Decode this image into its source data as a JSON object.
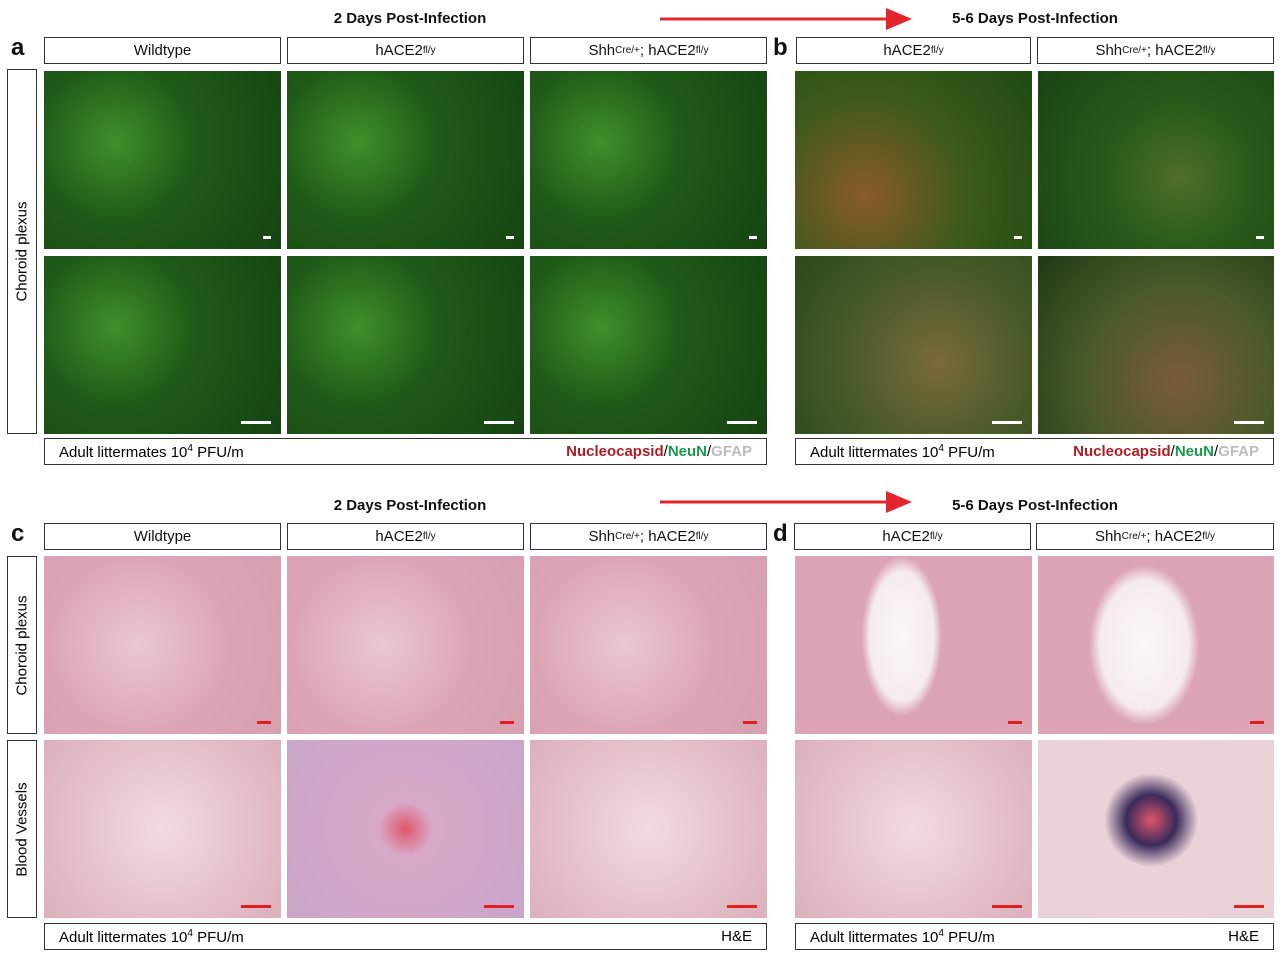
{
  "top": {
    "left_header": "2 Days Post-Infection",
    "right_header": "5-6 Days Post-Infection"
  },
  "bottom": {
    "left_header": "2 Days Post-Infection",
    "right_header": "5-6 Days Post-Infection"
  },
  "arrow_color": "#e3262d",
  "panels": {
    "a": "a",
    "b": "b",
    "c": "c",
    "d": "d"
  },
  "columns": {
    "wildtype": "Wildtype",
    "hace2": {
      "base": "hACE2",
      "sup": "fl/y"
    },
    "shh": {
      "base1": "Shh",
      "sup1": "Cre/+",
      "base2": "; hACE2",
      "sup2": "fl/y"
    }
  },
  "row_labels": {
    "choroid": "Choroid plexus",
    "vessels": "Blood Vessels"
  },
  "footer": {
    "prefix": "Adult littermates 10",
    "exp": "4",
    "suffix": " PFU/m",
    "stain_nucleocapsid": "Nucleocapsid",
    "stain_neun": "NeuN",
    "stain_gfap": "GFAP",
    "sep": "/",
    "he": "H&E"
  }
}
